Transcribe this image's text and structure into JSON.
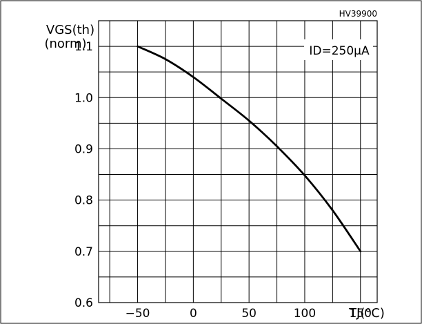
{
  "figure_code": "HV39900",
  "chart_data": {
    "type": "line",
    "ylabel_main": "VGS(th)",
    "ylabel_sub": "(norm)",
    "xlabel": "TJ(°C)",
    "annotation": "ID=250μA",
    "xlim": [
      -85,
      165
    ],
    "ylim": [
      0.6,
      1.15
    ],
    "x_ticks": [
      -50,
      0,
      50,
      100,
      150
    ],
    "x_tick_labels": [
      "−50",
      "0",
      "50",
      "100",
      "150"
    ],
    "y_ticks": [
      0.6,
      0.7,
      0.8,
      0.9,
      1.0,
      1.1
    ],
    "y_tick_labels": [
      "0.6",
      "0.7",
      "0.8",
      "0.9",
      "1.0",
      "1.1"
    ],
    "x_grid": [
      -75,
      -50,
      -25,
      0,
      25,
      50,
      75,
      100,
      125,
      150
    ],
    "y_grid": [
      0.65,
      0.7,
      0.75,
      0.8,
      0.85,
      0.9,
      0.95,
      1.0,
      1.05,
      1.1
    ],
    "grid": true,
    "series": [
      {
        "x": [
          -50,
          -25,
          0,
          25,
          50,
          75,
          100,
          125,
          150
        ],
        "values": [
          1.1,
          1.075,
          1.04,
          0.998,
          0.955,
          0.905,
          0.848,
          0.78,
          0.7
        ]
      }
    ]
  }
}
